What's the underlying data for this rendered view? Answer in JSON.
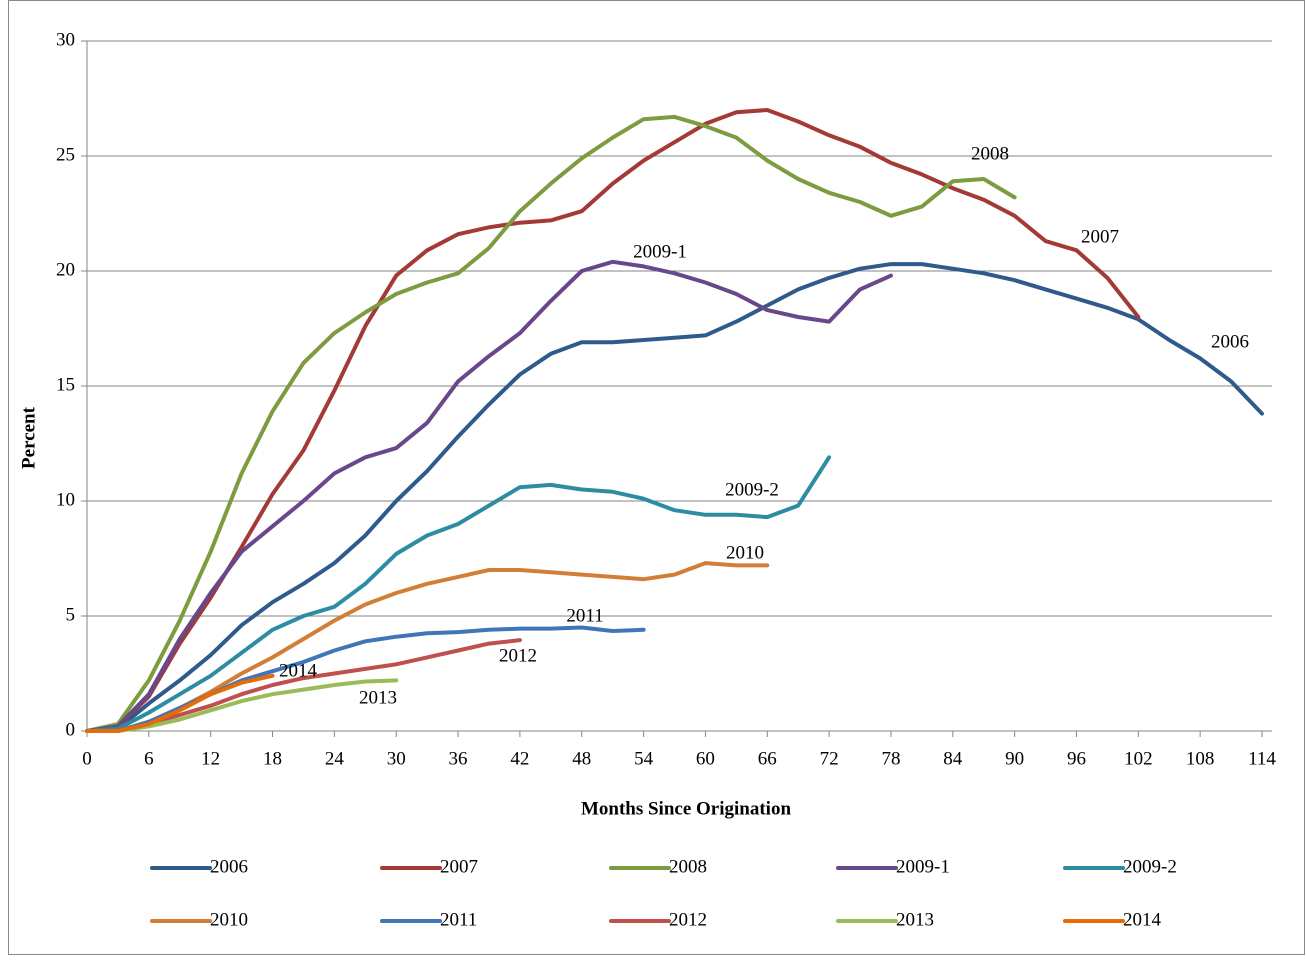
{
  "chart_data": {
    "type": "line",
    "xlabel": "Months Since Origination",
    "ylabel": "Percent",
    "x": [
      0,
      3,
      6,
      9,
      12,
      15,
      18,
      21,
      24,
      27,
      30,
      33,
      36,
      39,
      42,
      45,
      48,
      51,
      54,
      57,
      60,
      63,
      66,
      69,
      72,
      75,
      78,
      81,
      84,
      87,
      90,
      93,
      96,
      99,
      102,
      105,
      108,
      111,
      114
    ],
    "xlim": [
      0,
      114
    ],
    "ylim": [
      0,
      30
    ],
    "xticks": [
      0,
      6,
      12,
      18,
      24,
      30,
      36,
      42,
      48,
      54,
      60,
      66,
      72,
      78,
      84,
      90,
      96,
      102,
      108,
      114
    ],
    "yticks": [
      0,
      5,
      10,
      15,
      20,
      25,
      30
    ],
    "grid": true,
    "series": [
      {
        "name": "2006",
        "color": "#2f5a8c",
        "values": [
          0,
          0.1,
          1.2,
          2.2,
          3.3,
          4.6,
          5.6,
          6.4,
          7.3,
          8.5,
          10,
          11.3,
          12.8,
          14.2,
          15.5,
          16.4,
          16.9,
          16.9,
          17.0,
          17.1,
          17.2,
          17.8,
          18.5,
          19.2,
          19.7,
          20.1,
          20.3,
          20.3,
          20.1,
          19.9,
          19.6,
          19.2,
          18.8,
          18.4,
          17.9,
          17.0,
          16.2,
          15.2,
          13.8
        ]
      },
      {
        "name": "2007",
        "color": "#a33a35",
        "values": [
          0,
          0.2,
          1.5,
          3.8,
          5.8,
          8,
          10.3,
          12.2,
          14.8,
          17.6,
          19.8,
          20.9,
          21.6,
          21.9,
          22.1,
          22.2,
          22.6,
          23.8,
          24.8,
          25.6,
          26.4,
          26.9,
          27.0,
          26.5,
          25.9,
          25.4,
          24.7,
          24.2,
          23.6,
          23.1,
          22.4,
          21.3,
          20.9,
          19.7,
          18.0,
          null,
          null,
          null,
          null
        ]
      },
      {
        "name": "2008",
        "color": "#7d9b3f",
        "values": [
          0,
          0.3,
          2.2,
          4.8,
          7.8,
          11.2,
          13.9,
          16.0,
          17.3,
          18.2,
          19.0,
          19.5,
          19.9,
          21.0,
          22.6,
          23.8,
          24.9,
          25.8,
          26.6,
          26.7,
          26.3,
          25.8,
          24.8,
          24.0,
          23.4,
          23.0,
          22.4,
          22.8,
          23.9,
          24.0,
          23.2,
          null,
          null,
          null,
          null,
          null,
          null,
          null,
          null
        ]
      },
      {
        "name": "2009-1",
        "color": "#68478a",
        "values": [
          0,
          0.2,
          1.6,
          4,
          6,
          7.8,
          8.9,
          10,
          11.2,
          11.9,
          12.3,
          13.4,
          15.2,
          16.3,
          17.3,
          18.7,
          20,
          20.4,
          20.2,
          19.9,
          19.5,
          19.0,
          18.3,
          18.0,
          17.8,
          19.2,
          19.8,
          null,
          null,
          null,
          null,
          null,
          null,
          null,
          null,
          null,
          null,
          null,
          null
        ]
      },
      {
        "name": "2009-2",
        "color": "#2c8ca1",
        "values": [
          0,
          0.1,
          0.8,
          1.6,
          2.4,
          3.4,
          4.4,
          5.0,
          5.4,
          6.4,
          7.7,
          8.5,
          9.0,
          9.8,
          10.6,
          10.7,
          10.5,
          10.4,
          10.1,
          9.6,
          9.4,
          9.4,
          9.3,
          9.8,
          11.9,
          null,
          null,
          null,
          null,
          null,
          null,
          null,
          null,
          null,
          null,
          null,
          null,
          null,
          null
        ]
      },
      {
        "name": "2010",
        "color": "#d07f35",
        "values": [
          0,
          0,
          0.4,
          1.0,
          1.7,
          2.5,
          3.2,
          4.0,
          4.8,
          5.5,
          6.0,
          6.4,
          6.7,
          7.0,
          7.0,
          6.9,
          6.8,
          6.7,
          6.6,
          6.8,
          7.3,
          7.2,
          7.2,
          null,
          null,
          null,
          null,
          null,
          null,
          null,
          null,
          null,
          null,
          null,
          null,
          null,
          null,
          null,
          null
        ]
      },
      {
        "name": "2011",
        "color": "#3f76b7",
        "values": [
          0,
          0,
          0.4,
          1.0,
          1.6,
          2.2,
          2.6,
          3.0,
          3.5,
          3.9,
          4.1,
          4.25,
          4.3,
          4.4,
          4.45,
          4.45,
          4.5,
          4.35,
          4.4,
          null,
          null,
          null,
          null,
          null,
          null,
          null,
          null,
          null,
          null,
          null,
          null,
          null,
          null,
          null,
          null,
          null,
          null,
          null,
          null
        ]
      },
      {
        "name": "2012",
        "color": "#c0504d",
        "values": [
          0,
          0,
          0.3,
          0.7,
          1.1,
          1.6,
          2.0,
          2.3,
          2.5,
          2.7,
          2.9,
          3.2,
          3.5,
          3.8,
          3.95,
          null,
          null,
          null,
          null,
          null,
          null,
          null,
          null,
          null,
          null,
          null,
          null,
          null,
          null,
          null,
          null,
          null,
          null,
          null,
          null,
          null,
          null,
          null,
          null
        ]
      },
      {
        "name": "2013",
        "color": "#9bbb59",
        "values": [
          0,
          0,
          0.2,
          0.5,
          0.9,
          1.3,
          1.6,
          1.8,
          2.0,
          2.15,
          2.2,
          null,
          null,
          null,
          null,
          null,
          null,
          null,
          null,
          null,
          null,
          null,
          null,
          null,
          null,
          null,
          null,
          null,
          null,
          null,
          null,
          null,
          null,
          null,
          null,
          null,
          null,
          null,
          null
        ]
      },
      {
        "name": "2014",
        "color": "#e46c0a",
        "values": [
          0,
          0,
          0.3,
          0.9,
          1.6,
          2.1,
          2.4,
          null,
          null,
          null,
          null,
          null,
          null,
          null,
          null,
          null,
          null,
          null,
          null,
          null,
          null,
          null,
          null,
          null,
          null,
          null,
          null,
          null,
          null,
          null,
          null,
          null,
          null,
          null,
          null,
          null,
          null,
          null,
          null
        ]
      }
    ]
  }
}
